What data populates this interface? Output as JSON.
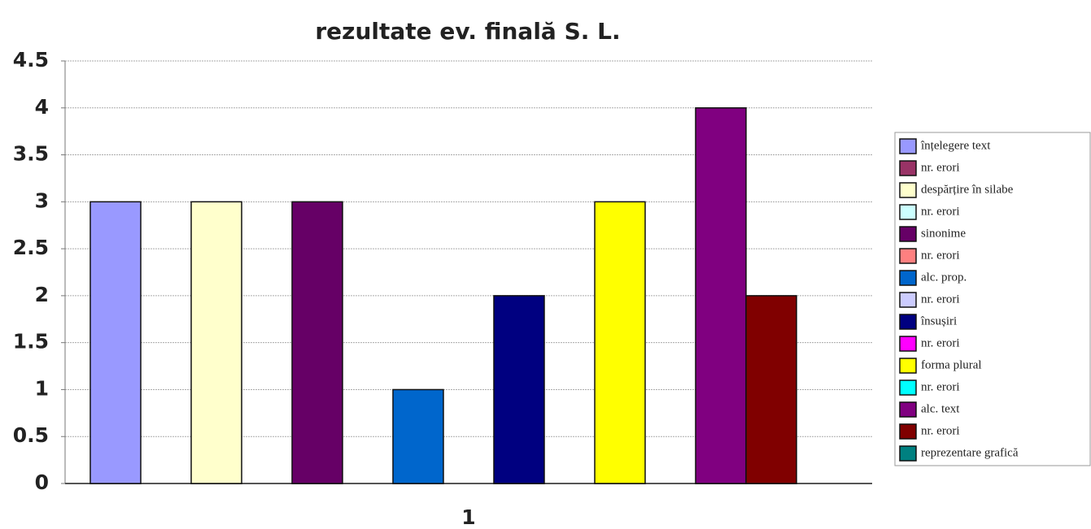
{
  "chart_data": {
    "type": "bar",
    "title": "rezultate ev. finală S. L.",
    "categories": [
      "1"
    ],
    "series": [
      {
        "name": "înțelegere text",
        "color": "#9999ff",
        "values": [
          3
        ]
      },
      {
        "name": "nr. erori",
        "color": "#993366",
        "values": [
          0
        ]
      },
      {
        "name": "despărțire în silabe",
        "color": "#ffffcc",
        "values": [
          3
        ]
      },
      {
        "name": "nr. erori",
        "color": "#ccffff",
        "values": [
          0
        ]
      },
      {
        "name": "sinonime",
        "color": "#660066",
        "values": [
          3
        ]
      },
      {
        "name": "nr. erori",
        "color": "#ff8080",
        "values": [
          0
        ]
      },
      {
        "name": "alc. prop.",
        "color": "#0066cc",
        "values": [
          1
        ]
      },
      {
        "name": "nr. erori",
        "color": "#ccccff",
        "values": [
          0
        ]
      },
      {
        "name": "însușiri",
        "color": "#000080",
        "values": [
          2
        ]
      },
      {
        "name": "nr. erori",
        "color": "#ff00ff",
        "values": [
          0
        ]
      },
      {
        "name": "forma plural",
        "color": "#ffff00",
        "values": [
          3
        ]
      },
      {
        "name": "nr. erori",
        "color": "#00ffff",
        "values": [
          0
        ]
      },
      {
        "name": "alc. text",
        "color": "#800080",
        "values": [
          4
        ]
      },
      {
        "name": "nr. erori",
        "color": "#800000",
        "values": [
          2
        ]
      },
      {
        "name": "reprezentare grafică",
        "color": "#008080",
        "values": [
          0
        ]
      }
    ],
    "ylim": [
      0,
      4.5
    ],
    "yticks": [
      0,
      0.5,
      1,
      1.5,
      2,
      2.5,
      3,
      3.5,
      4,
      4.5
    ],
    "grid": true,
    "legend": "right"
  }
}
